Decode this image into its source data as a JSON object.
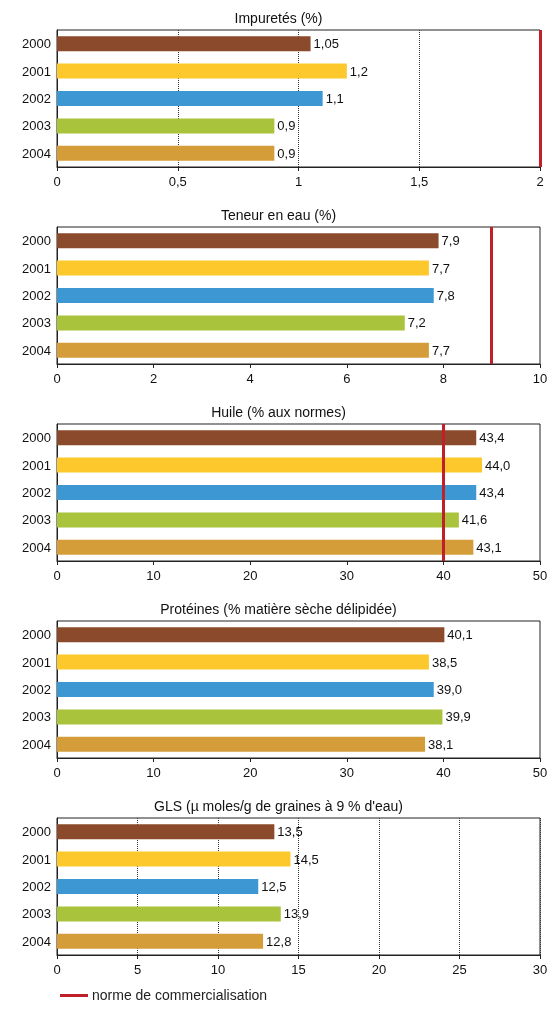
{
  "chart_data": [
    {
      "type": "bar",
      "orientation": "horizontal",
      "title": "Impuretés (%)",
      "categories": [
        "2000",
        "2001",
        "2002",
        "2003",
        "2004"
      ],
      "values": [
        1.05,
        1.2,
        1.1,
        0.9,
        0.9
      ],
      "colors": [
        "#8b4a2b",
        "#fcc82b",
        "#3d97d3",
        "#a9c43c",
        "#d49d3a"
      ],
      "value_labels": [
        "1,05",
        "1,2",
        "1,1",
        "0,9",
        "0,9"
      ],
      "xlim": [
        0,
        2
      ],
      "xticks": [
        0,
        {
          "value": 0.5,
          "label": "0,5"
        },
        1,
        {
          "value": 1.5,
          "label": "1,5"
        },
        2
      ],
      "grid": "x",
      "ref_lines": [
        {
          "axis": "x",
          "value": 2,
          "color": "#c0202a"
        }
      ]
    },
    {
      "type": "bar",
      "orientation": "horizontal",
      "title": "Teneur en eau (%)",
      "categories": [
        "2000",
        "2001",
        "2002",
        "2003",
        "2004"
      ],
      "values": [
        7.9,
        7.7,
        7.8,
        7.2,
        7.7
      ],
      "colors": [
        "#8b4a2b",
        "#fcc82b",
        "#3d97d3",
        "#a9c43c",
        "#d49d3a"
      ],
      "value_labels": [
        "7,9",
        "7,7",
        "7,8",
        "7,2",
        "7,7"
      ],
      "xlim": [
        0,
        10
      ],
      "xticks": [
        0,
        2,
        4,
        6,
        8,
        10
      ],
      "grid": false,
      "ref_lines": [
        {
          "axis": "x",
          "value": 9,
          "color": "#c0202a"
        }
      ]
    },
    {
      "type": "bar",
      "orientation": "horizontal",
      "title": "Huile (% aux normes)",
      "categories": [
        "2000",
        "2001",
        "2002",
        "2003",
        "2004"
      ],
      "values": [
        43.4,
        44.0,
        43.4,
        41.6,
        43.1
      ],
      "colors": [
        "#8b4a2b",
        "#fcc82b",
        "#3d97d3",
        "#a9c43c",
        "#d49d3a"
      ],
      "value_labels": [
        "43,4",
        "44,0",
        "43,4",
        "41,6",
        "43,1"
      ],
      "xlim": [
        0,
        50
      ],
      "xticks": [
        0,
        10,
        20,
        30,
        40,
        50
      ],
      "grid": false,
      "ref_lines": [
        {
          "axis": "x",
          "value": 40,
          "color": "#c0202a"
        }
      ]
    },
    {
      "type": "bar",
      "orientation": "horizontal",
      "title": "Protéines (% matière sèche délipidée)",
      "categories": [
        "2000",
        "2001",
        "2002",
        "2003",
        "2004"
      ],
      "values": [
        40.1,
        38.5,
        39.0,
        39.9,
        38.1
      ],
      "colors": [
        "#8b4a2b",
        "#fcc82b",
        "#3d97d3",
        "#a9c43c",
        "#d49d3a"
      ],
      "value_labels": [
        "40,1",
        "38,5",
        "39,0",
        "39,9",
        "38,1"
      ],
      "xlim": [
        0,
        50
      ],
      "xticks": [
        0,
        10,
        20,
        30,
        40,
        50
      ],
      "grid": false
    },
    {
      "type": "bar",
      "orientation": "horizontal",
      "title": "GLS (µ moles/g de graines à 9 % d'eau)",
      "categories": [
        "2000",
        "2001",
        "2002",
        "2003",
        "2004"
      ],
      "values": [
        13.5,
        14.5,
        12.5,
        13.9,
        12.8
      ],
      "colors": [
        "#8b4a2b",
        "#fcc82b",
        "#3d97d3",
        "#a9c43c",
        "#d49d3a"
      ],
      "value_labels": [
        "13,5",
        "14,5",
        "12,5",
        "13,9",
        "12,8"
      ],
      "xlim": [
        0,
        30
      ],
      "xticks": [
        0,
        5,
        10,
        15,
        20,
        25,
        30
      ],
      "grid": "x",
      "annotations": [
        "norme de commercialisation"
      ]
    }
  ]
}
